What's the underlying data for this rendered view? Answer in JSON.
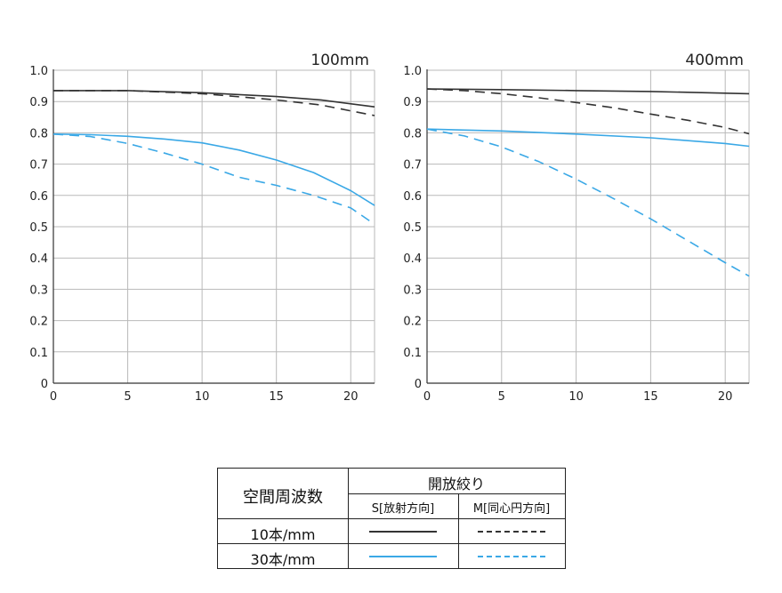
{
  "colors": {
    "k10": "#333333",
    "k30": "#3aa8e6",
    "grid": "#b9b9b9",
    "axis": "#333333"
  },
  "chart_data": [
    {
      "type": "line",
      "title": "100mm",
      "xlim": [
        0,
        21.6
      ],
      "ylim": [
        0,
        1.0
      ],
      "x_ticks": [
        "0",
        "5",
        "10",
        "15",
        "20"
      ],
      "y_ticks": [
        "0",
        "0.1",
        "0.2",
        "0.3",
        "0.4",
        "0.5",
        "0.6",
        "0.7",
        "0.8",
        "0.9",
        "1.0"
      ],
      "grid": true,
      "series": [
        {
          "name": "10本/mm S",
          "line": "solid",
          "color": "k10",
          "x": [
            0,
            5,
            10,
            15,
            18,
            21.6
          ],
          "y": [
            0.935,
            0.935,
            0.928,
            0.916,
            0.905,
            0.883
          ]
        },
        {
          "name": "10本/mm M",
          "line": "dashed",
          "color": "k10",
          "x": [
            0,
            5,
            10,
            15,
            18,
            21.6
          ],
          "y": [
            0.935,
            0.935,
            0.925,
            0.905,
            0.889,
            0.855
          ]
        },
        {
          "name": "30本/mm S",
          "line": "solid",
          "color": "k30",
          "x": [
            0,
            2.5,
            5,
            7.5,
            10,
            12.5,
            15,
            17.5,
            20,
            21.6
          ],
          "y": [
            0.796,
            0.794,
            0.789,
            0.78,
            0.768,
            0.745,
            0.713,
            0.673,
            0.615,
            0.568
          ]
        },
        {
          "name": "30本/mm M",
          "line": "dashed",
          "color": "k30",
          "x": [
            0,
            2.5,
            5,
            7.5,
            10,
            12.5,
            15,
            17.5,
            20,
            21.6
          ],
          "y": [
            0.796,
            0.788,
            0.766,
            0.735,
            0.7,
            0.658,
            0.632,
            0.6,
            0.56,
            0.508
          ]
        }
      ]
    },
    {
      "type": "line",
      "title": "400mm",
      "xlim": [
        0,
        21.6
      ],
      "ylim": [
        0,
        1.0
      ],
      "x_ticks": [
        "0",
        "5",
        "10",
        "15",
        "20"
      ],
      "y_ticks": [
        "0",
        "0.1",
        "0.2",
        "0.3",
        "0.4",
        "0.5",
        "0.6",
        "0.7",
        "0.8",
        "0.9",
        "1.0"
      ],
      "grid": true,
      "series": [
        {
          "name": "10本/mm S",
          "line": "solid",
          "color": "k10",
          "x": [
            0,
            5,
            10,
            15,
            21.6
          ],
          "y": [
            0.94,
            0.938,
            0.935,
            0.932,
            0.925
          ]
        },
        {
          "name": "10本/mm M",
          "line": "dashed",
          "color": "k10",
          "x": [
            0,
            2.5,
            5,
            7.5,
            10,
            12.5,
            15,
            17.5,
            20,
            21.6
          ],
          "y": [
            0.94,
            0.935,
            0.925,
            0.912,
            0.897,
            0.88,
            0.86,
            0.84,
            0.817,
            0.797
          ]
        },
        {
          "name": "30本/mm S",
          "line": "solid",
          "color": "k30",
          "x": [
            0,
            5,
            10,
            15,
            20,
            21.6
          ],
          "y": [
            0.812,
            0.806,
            0.796,
            0.784,
            0.766,
            0.757
          ]
        },
        {
          "name": "30本/mm M",
          "line": "dashed",
          "color": "k30",
          "x": [
            0,
            2.5,
            5,
            7.5,
            10,
            12.5,
            15,
            17.5,
            20,
            21.6
          ],
          "y": [
            0.812,
            0.79,
            0.755,
            0.708,
            0.652,
            0.59,
            0.525,
            0.455,
            0.385,
            0.342
          ]
        }
      ]
    }
  ],
  "legend": {
    "row_header": "空間周波数",
    "group_header": "開放絞り",
    "col_s": "S[放射方向]",
    "col_m": "M[同心円方向]",
    "row_10": "10本/mm",
    "row_30": "30本/mm"
  }
}
